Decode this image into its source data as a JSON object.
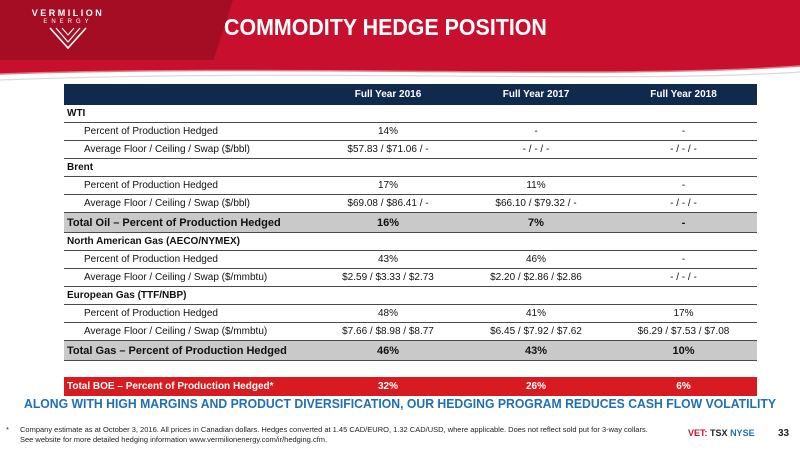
{
  "header": {
    "logo_name": "VERMILION",
    "logo_sub": "ENERGY",
    "title": "COMMODITY HEDGE POSITION"
  },
  "table": {
    "columns": [
      "Full Year 2016",
      "Full Year 2017",
      "Full Year 2018"
    ],
    "wti": {
      "label": "WTI",
      "pct_label": "Percent of Production Hedged",
      "pct": [
        "14%",
        "-",
        "-"
      ],
      "price_label": "Average Floor / Ceiling / Swap ($/bbl)",
      "price": [
        "$57.83 / $71.06 / -",
        "- / - / -",
        "- / - / -"
      ]
    },
    "brent": {
      "label": "Brent",
      "pct_label": "Percent of Production Hedged",
      "pct": [
        "17%",
        "11%",
        "-"
      ],
      "price_label": "Average Floor / Ceiling / Swap ($/bbl)",
      "price": [
        "$69.08 / $86.41 / -",
        "$66.10 / $79.32 / -",
        "- / - / -"
      ]
    },
    "total_oil": {
      "label": "Total Oil – Percent of Production Hedged",
      "values": [
        "16%",
        "7%",
        "-"
      ]
    },
    "na_gas": {
      "label": "North American Gas (AECO/NYMEX)",
      "pct_label": "Percent of Production Hedged",
      "pct": [
        "43%",
        "46%",
        "-"
      ],
      "price_label": "Average Floor / Ceiling / Swap ($/mmbtu)",
      "price": [
        "$2.59 / $3.33 / $2.73",
        "$2.20 / $2.86 / $2.86",
        "- / - / -"
      ]
    },
    "eu_gas": {
      "label": "European Gas (TTF/NBP)",
      "pct_label": "Percent of Production Hedged",
      "pct": [
        "48%",
        "41%",
        "17%"
      ],
      "price_label": "Average Floor / Ceiling / Swap ($/mmbtu)",
      "price": [
        "$7.66 / $8.98 / $8.77",
        "$6.45 / $7.92 / $7.62",
        "$6.29 / $7.53 / $7.08"
      ]
    },
    "total_gas": {
      "label": "Total Gas – Percent of Production Hedged",
      "values": [
        "46%",
        "43%",
        "10%"
      ]
    },
    "total_boe": {
      "label": "Total BOE – Percent of Production Hedged*",
      "values": [
        "32%",
        "26%",
        "6%"
      ]
    }
  },
  "tagline": "ALONG WITH HIGH MARGINS AND PRODUCT DIVERSIFICATION, OUR HEDGING PROGRAM REDUCES CASH FLOW VOLATILITY",
  "footnote": {
    "marker": "*",
    "line1": "Company estimate as at October 3, 2016. All prices in Canadian dollars. Hedges converted at 1.45 CAD/EURO, 1.32 CAD/USD, where applicable.  Does not reflect sold put for 3-way collars.",
    "line2": "See website for more detailed hedging information www.vermilionenergy.com/ir/hedging.cfm."
  },
  "tickers": {
    "vet": "VET:",
    "tsx": "TSX",
    "nyse": "NYSE"
  },
  "page_number": "33",
  "colors": {
    "brand_red": "#c8102e",
    "header_navy": "#0f2a4d",
    "tagline_blue": "#1f6fb5",
    "total_gray": "#c9c9c9"
  }
}
